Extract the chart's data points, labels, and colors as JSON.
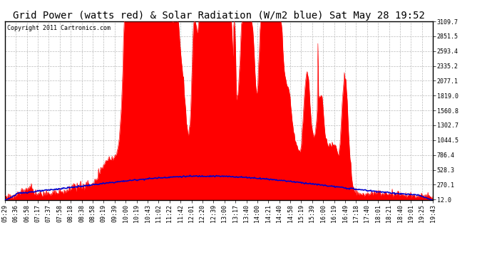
{
  "title": "Grid Power (watts red) & Solar Radiation (W/m2 blue) Sat May 28 19:52",
  "copyright": "Copyright 2011 Cartronics.com",
  "yticks": [
    12.0,
    270.1,
    528.3,
    786.4,
    1044.5,
    1302.7,
    1560.8,
    1819.0,
    2077.1,
    2335.2,
    2593.4,
    2851.5,
    3109.7
  ],
  "xtick_labels": [
    "05:29",
    "06:36",
    "06:58",
    "07:17",
    "07:37",
    "07:58",
    "08:18",
    "08:38",
    "08:58",
    "09:19",
    "09:39",
    "10:00",
    "10:19",
    "10:43",
    "11:02",
    "11:22",
    "11:42",
    "12:01",
    "12:20",
    "12:39",
    "13:00",
    "13:17",
    "13:40",
    "14:00",
    "14:21",
    "14:40",
    "14:58",
    "15:19",
    "15:39",
    "16:00",
    "16:19",
    "16:49",
    "17:18",
    "17:40",
    "18:01",
    "18:21",
    "18:40",
    "19:01",
    "19:25",
    "19:43"
  ],
  "ymin": 12.0,
  "ymax": 3109.7,
  "bg_color": "#ffffff",
  "plot_bg_color": "#ffffff",
  "grid_color": "#bbbbbb",
  "red_color": "#ff0000",
  "blue_color": "#0000cc",
  "title_fontsize": 10,
  "tick_fontsize": 6,
  "copyright_fontsize": 6
}
